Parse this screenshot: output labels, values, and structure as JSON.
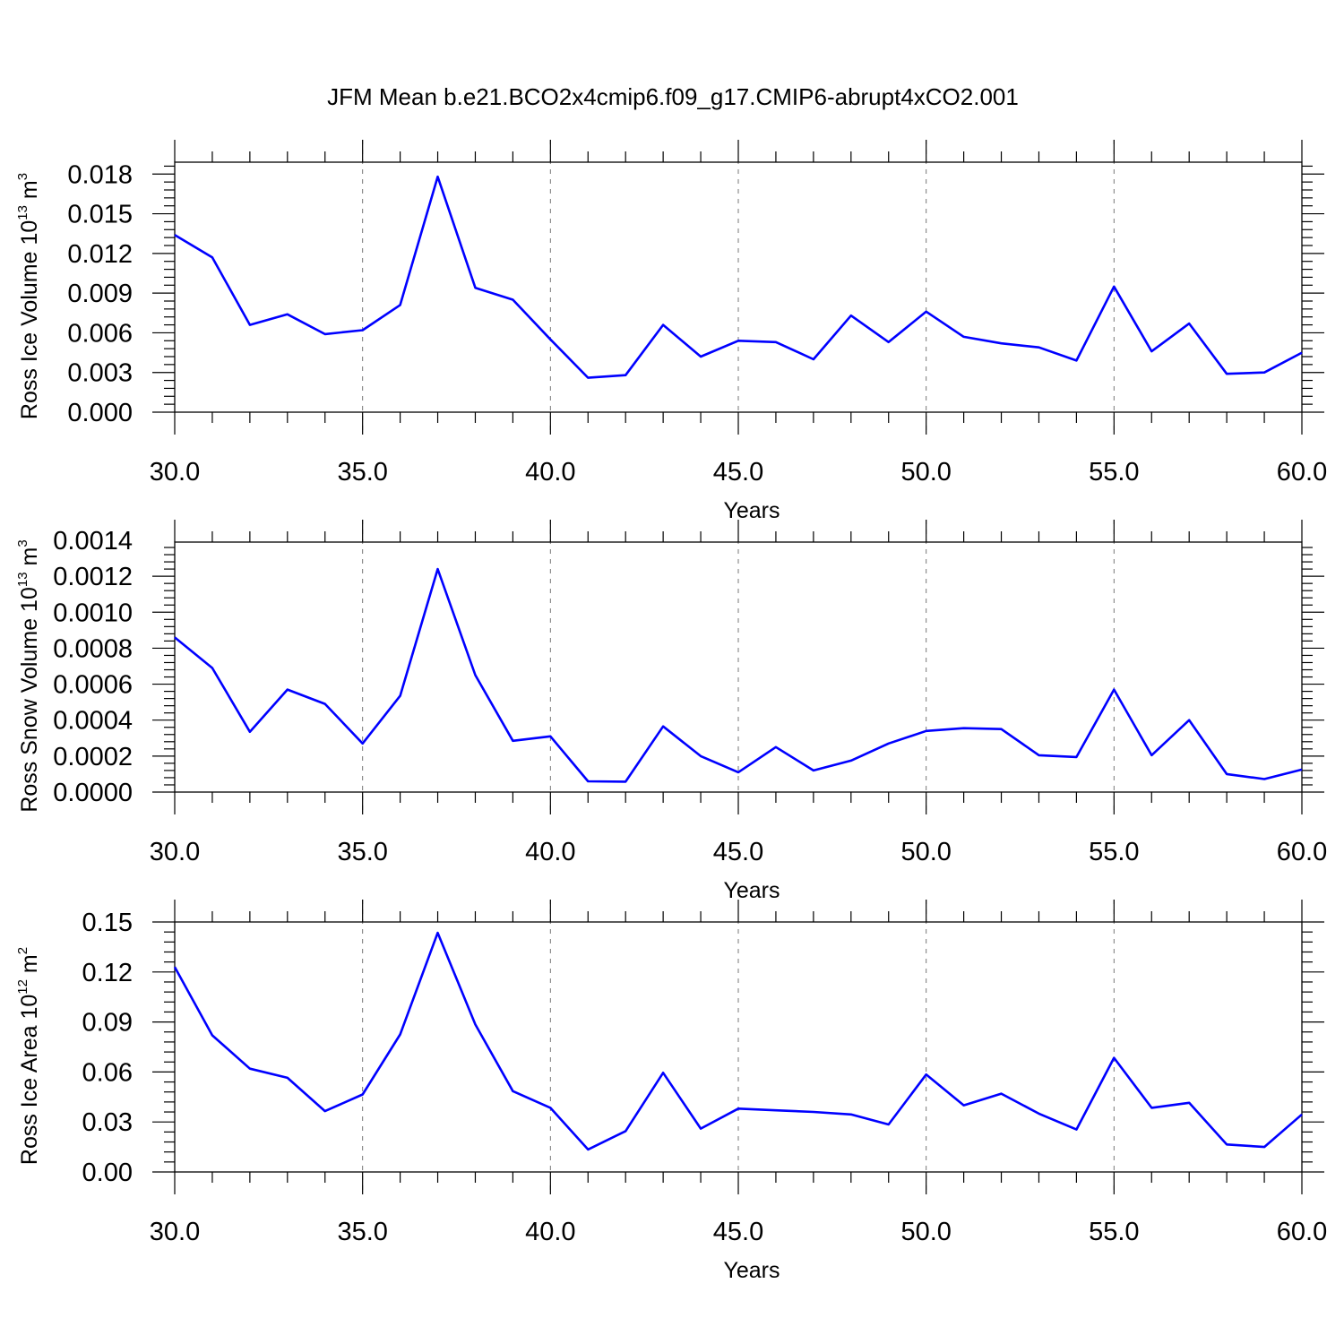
{
  "figure": {
    "title": "JFM Mean b.e21.BCO2x4cmip6.f09_g17.CMIP6-abrupt4xCO2.001",
    "line_color": "#0000ff",
    "grid_color": "#777777"
  },
  "chart_data": [
    {
      "type": "line",
      "title": "",
      "xlabel": "Years",
      "ylabel": "Ross Ice Volume 10",
      "ylabel_exponent": "13",
      "ylabel_unit": " m",
      "ylabel_unit_power": "3",
      "xlim": [
        30,
        60
      ],
      "ylim": [
        0,
        0.0018
      ],
      "ylim_max": 0.0189,
      "xticks": [
        30,
        35,
        40,
        45,
        50,
        55,
        60
      ],
      "xtick_labels": [
        "30.0",
        "35.0",
        "40.0",
        "45.0",
        "50.0",
        "55.0",
        "60.0"
      ],
      "yticks": [
        0,
        0.003,
        0.006,
        0.009,
        0.012,
        0.015,
        0.018
      ],
      "ytick_labels": [
        "0.000",
        "0.003",
        "0.006",
        "0.009",
        "0.012",
        "0.015",
        "0.018"
      ],
      "grid": "vertical dashed at major x ticks",
      "x": [
        30,
        31,
        32,
        33,
        34,
        35,
        36,
        37,
        38,
        39,
        40,
        41,
        42,
        43,
        44,
        45,
        46,
        47,
        48,
        49,
        50,
        51,
        52,
        53,
        54,
        55,
        56,
        57,
        58,
        59,
        60
      ],
      "series": [
        {
          "values": [
            0.0134,
            0.0117,
            0.0066,
            0.0074,
            0.0059,
            0.0062,
            0.0081,
            0.0178,
            0.0094,
            0.0085,
            0.0055,
            0.0026,
            0.0028,
            0.0066,
            0.0042,
            0.0054,
            0.0053,
            0.004,
            0.0073,
            0.0053,
            0.0076,
            0.0057,
            0.0052,
            0.0049,
            0.0039,
            0.0095,
            0.0046,
            0.0067,
            0.0029,
            0.003,
            0.0045
          ]
        }
      ]
    },
    {
      "type": "line",
      "title": "",
      "xlabel": "Years",
      "ylabel": "Ross Snow Volume 10",
      "ylabel_exponent": "13",
      "ylabel_unit": " m",
      "ylabel_unit_power": "3",
      "xlim": [
        30,
        60
      ],
      "ylim": [
        0,
        0.0014
      ],
      "ylim_max": 0.00139,
      "xticks": [
        30,
        35,
        40,
        45,
        50,
        55,
        60
      ],
      "xtick_labels": [
        "30.0",
        "35.0",
        "40.0",
        "45.0",
        "50.0",
        "55.0",
        "60.0"
      ],
      "yticks": [
        0,
        0.0002,
        0.0004,
        0.0006,
        0.0008,
        0.001,
        0.0012,
        0.0014
      ],
      "ytick_labels": [
        "0.0000",
        "0.0002",
        "0.0004",
        "0.0006",
        "0.0008",
        "0.0010",
        "0.0012",
        "0.0014"
      ],
      "grid": "vertical dashed at major x ticks",
      "x": [
        30,
        31,
        32,
        33,
        34,
        35,
        36,
        37,
        38,
        39,
        40,
        41,
        42,
        43,
        44,
        45,
        46,
        47,
        48,
        49,
        50,
        51,
        52,
        53,
        54,
        55,
        56,
        57,
        58,
        59,
        60
      ],
      "series": [
        {
          "values": [
            0.00086,
            0.00069,
            0.000335,
            0.00057,
            0.00049,
            0.00027,
            0.000535,
            0.00124,
            0.00065,
            0.000285,
            0.00031,
            6e-05,
            5.8e-05,
            0.000365,
            0.0002,
            0.00011,
            0.00025,
            0.00012,
            0.000175,
            0.00027,
            0.00034,
            0.000355,
            0.00035,
            0.000205,
            0.000195,
            0.00057,
            0.000205,
            0.0004,
            0.0001,
            7.2e-05,
            0.000125
          ]
        }
      ]
    },
    {
      "type": "line",
      "title": "",
      "xlabel": "Years",
      "ylabel": "Ross Ice Area 10",
      "ylabel_exponent": "12",
      "ylabel_unit": " m",
      "ylabel_unit_power": "2",
      "xlim": [
        30,
        60
      ],
      "ylim": [
        0,
        0.15
      ],
      "ylim_max": 0.15,
      "xticks": [
        30,
        35,
        40,
        45,
        50,
        55,
        60
      ],
      "xtick_labels": [
        "30.0",
        "35.0",
        "40.0",
        "45.0",
        "50.0",
        "55.0",
        "60.0"
      ],
      "yticks": [
        0,
        0.03,
        0.06,
        0.09,
        0.12,
        0.15
      ],
      "ytick_labels": [
        "0.00",
        "0.03",
        "0.06",
        "0.09",
        "0.12",
        "0.15"
      ],
      "grid": "vertical dashed at major x ticks",
      "x": [
        30,
        31,
        32,
        33,
        34,
        35,
        36,
        37,
        38,
        39,
        40,
        41,
        42,
        43,
        44,
        45,
        46,
        47,
        48,
        49,
        50,
        51,
        52,
        53,
        54,
        55,
        56,
        57,
        58,
        59,
        60
      ],
      "series": [
        {
          "values": [
            0.123,
            0.082,
            0.062,
            0.0565,
            0.0365,
            0.0465,
            0.0825,
            0.1435,
            0.0885,
            0.0485,
            0.0385,
            0.0135,
            0.0245,
            0.0595,
            0.026,
            0.038,
            0.037,
            0.036,
            0.0345,
            0.0285,
            0.0585,
            0.04,
            0.047,
            0.035,
            0.0255,
            0.0685,
            0.0385,
            0.0415,
            0.0165,
            0.015,
            0.0345
          ]
        }
      ]
    }
  ]
}
